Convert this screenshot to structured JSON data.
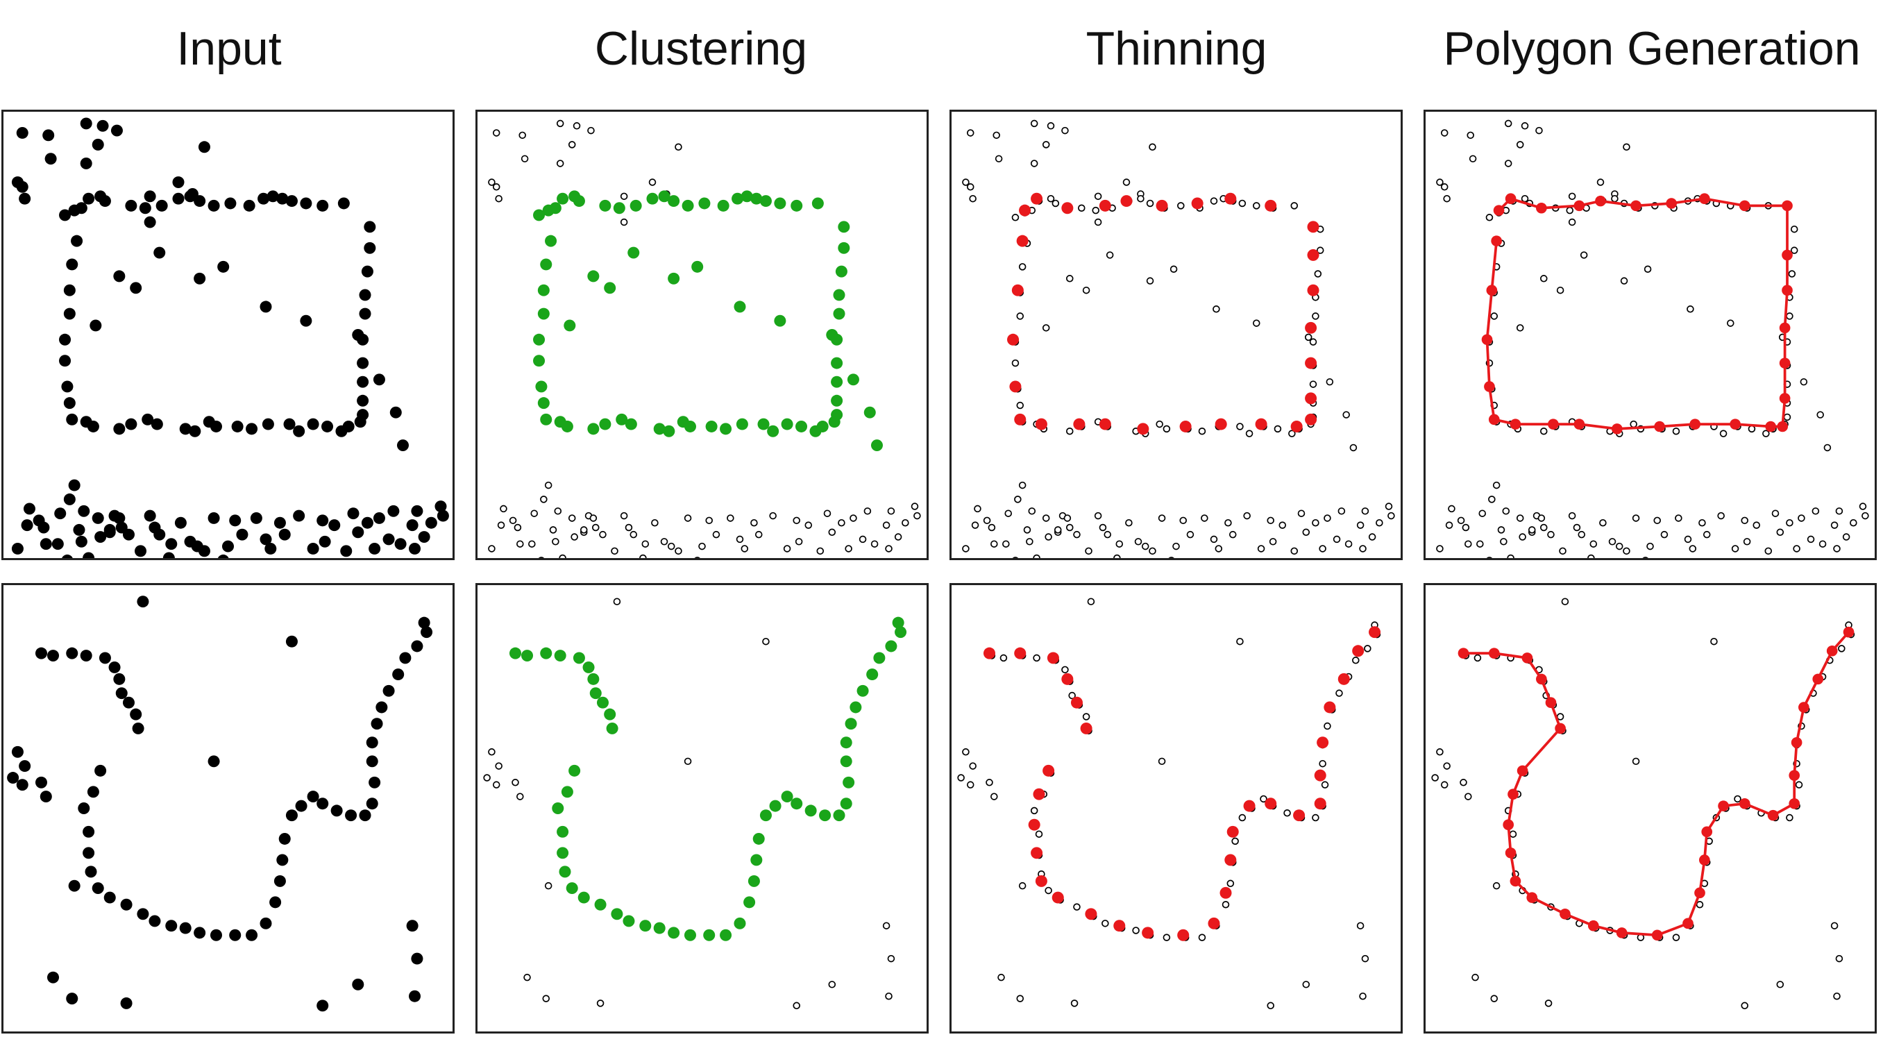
{
  "columns": [
    {
      "title": "Input"
    },
    {
      "title": "Clustering"
    },
    {
      "title": "Thinning"
    },
    {
      "title": "Polygon Generation"
    }
  ],
  "colors": {
    "input": "#000000",
    "cluster": "#1aa51a",
    "thin": "#e8191c",
    "outline": "#000000",
    "border": "#222222"
  },
  "rows": [
    {
      "name": "rectangle",
      "noise": [
        [
          16,
          18
        ],
        [
          38,
          20
        ],
        [
          70,
          10
        ],
        [
          80,
          28
        ],
        [
          84,
          12
        ],
        [
          96,
          16
        ],
        [
          124,
          94
        ],
        [
          160,
          70
        ],
        [
          170,
          30
        ],
        [
          124,
          72
        ],
        [
          148,
          60
        ],
        [
          70,
          44
        ],
        [
          18,
          390
        ],
        [
          12,
          372
        ],
        [
          34,
          354
        ],
        [
          36,
          368
        ],
        [
          46,
          368
        ],
        [
          30,
          348
        ],
        [
          54,
          382
        ],
        [
          66,
          366
        ],
        [
          72,
          380
        ],
        [
          82,
          362
        ],
        [
          90,
          358
        ],
        [
          94,
          344
        ],
        [
          98,
          346
        ],
        [
          100,
          354
        ],
        [
          106,
          360
        ],
        [
          116,
          374
        ],
        [
          124,
          344
        ],
        [
          128,
          354
        ],
        [
          132,
          360
        ],
        [
          140,
          380
        ],
        [
          142,
          368
        ],
        [
          150,
          350
        ],
        [
          158,
          366
        ],
        [
          164,
          370
        ],
        [
          170,
          374
        ],
        [
          178,
          346
        ],
        [
          186,
          382
        ],
        [
          190,
          370
        ],
        [
          196,
          348
        ],
        [
          202,
          360
        ],
        [
          214,
          346
        ],
        [
          222,
          364
        ],
        [
          226,
          372
        ],
        [
          234,
          350
        ],
        [
          238,
          360
        ],
        [
          250,
          344
        ],
        [
          262,
          372
        ],
        [
          270,
          348
        ],
        [
          272,
          366
        ],
        [
          280,
          352
        ],
        [
          290,
          374
        ],
        [
          296,
          342
        ],
        [
          300,
          358
        ],
        [
          308,
          350
        ],
        [
          314,
          372
        ],
        [
          318,
          346
        ],
        [
          326,
          364
        ],
        [
          330,
          340
        ],
        [
          336,
          368
        ],
        [
          346,
          352
        ],
        [
          348,
          372
        ],
        [
          350,
          340
        ],
        [
          356,
          362
        ],
        [
          362,
          350
        ],
        [
          370,
          336
        ],
        [
          372,
          344
        ],
        [
          12,
          60
        ],
        [
          16,
          64
        ],
        [
          18,
          74
        ],
        [
          40,
          40
        ],
        [
          56,
          330
        ],
        [
          60,
          318
        ],
        [
          22,
          338
        ],
        [
          20,
          352
        ],
        [
          48,
          342
        ],
        [
          64,
          356
        ],
        [
          68,
          340
        ],
        [
          80,
          346
        ],
        [
          90,
          356
        ]
      ],
      "cluster": [
        [
          78,
          182
        ],
        [
          112,
          150
        ],
        [
          98,
          140
        ],
        [
          132,
          120
        ],
        [
          166,
          142
        ],
        [
          186,
          132
        ],
        [
          222,
          166
        ],
        [
          256,
          178
        ],
        [
          300,
          190
        ],
        [
          318,
          228
        ],
        [
          332,
          256
        ],
        [
          338,
          284
        ],
        [
          52,
          88
        ],
        [
          60,
          84
        ],
        [
          66,
          82
        ],
        [
          72,
          74
        ],
        [
          82,
          72
        ],
        [
          86,
          76
        ],
        [
          108,
          80
        ],
        [
          120,
          82
        ],
        [
          134,
          80
        ],
        [
          148,
          74
        ],
        [
          158,
          72
        ],
        [
          166,
          76
        ],
        [
          178,
          80
        ],
        [
          192,
          78
        ],
        [
          208,
          80
        ],
        [
          220,
          74
        ],
        [
          228,
          72
        ],
        [
          236,
          74
        ],
        [
          244,
          76
        ],
        [
          256,
          78
        ],
        [
          270,
          80
        ],
        [
          288,
          78
        ],
        [
          310,
          98
        ],
        [
          310,
          116
        ],
        [
          308,
          136
        ],
        [
          306,
          156
        ],
        [
          306,
          172
        ],
        [
          304,
          194
        ],
        [
          304,
          214
        ],
        [
          304,
          230
        ],
        [
          304,
          246
        ],
        [
          304,
          258
        ],
        [
          62,
          110
        ],
        [
          58,
          130
        ],
        [
          56,
          152
        ],
        [
          56,
          172
        ],
        [
          52,
          194
        ],
        [
          52,
          212
        ],
        [
          54,
          234
        ],
        [
          56,
          248
        ],
        [
          58,
          262
        ],
        [
          70,
          264
        ],
        [
          76,
          268
        ],
        [
          98,
          270
        ],
        [
          108,
          266
        ],
        [
          122,
          262
        ],
        [
          130,
          266
        ],
        [
          154,
          270
        ],
        [
          162,
          272
        ],
        [
          174,
          264
        ],
        [
          180,
          268
        ],
        [
          198,
          268
        ],
        [
          210,
          270
        ],
        [
          224,
          266
        ],
        [
          242,
          266
        ],
        [
          250,
          272
        ],
        [
          262,
          266
        ],
        [
          274,
          268
        ],
        [
          286,
          272
        ],
        [
          292,
          268
        ],
        [
          302,
          264
        ]
      ],
      "thin": [
        [
          62,
          84
        ],
        [
          72,
          74
        ],
        [
          98,
          82
        ],
        [
          130,
          80
        ],
        [
          148,
          76
        ],
        [
          178,
          80
        ],
        [
          208,
          78
        ],
        [
          236,
          74
        ],
        [
          270,
          80
        ],
        [
          306,
          98
        ],
        [
          306,
          122
        ],
        [
          306,
          152
        ],
        [
          304,
          184
        ],
        [
          304,
          214
        ],
        [
          304,
          244
        ],
        [
          304,
          262
        ],
        [
          60,
          110
        ],
        [
          56,
          152
        ],
        [
          52,
          194
        ],
        [
          54,
          234
        ],
        [
          58,
          262
        ],
        [
          76,
          266
        ],
        [
          108,
          266
        ],
        [
          130,
          266
        ],
        [
          162,
          270
        ],
        [
          198,
          268
        ],
        [
          228,
          266
        ],
        [
          262,
          266
        ],
        [
          292,
          268
        ]
      ],
      "polygon": [
        [
          62,
          84
        ],
        [
          72,
          74
        ],
        [
          98,
          82
        ],
        [
          130,
          80
        ],
        [
          148,
          76
        ],
        [
          178,
          80
        ],
        [
          208,
          78
        ],
        [
          236,
          74
        ],
        [
          270,
          80
        ],
        [
          306,
          80
        ],
        [
          306,
          122
        ],
        [
          306,
          152
        ],
        [
          304,
          184
        ],
        [
          304,
          214
        ],
        [
          304,
          244
        ],
        [
          302,
          268
        ],
        [
          292,
          268
        ],
        [
          262,
          266
        ],
        [
          228,
          266
        ],
        [
          198,
          268
        ],
        [
          162,
          270
        ],
        [
          130,
          266
        ],
        [
          108,
          266
        ],
        [
          76,
          266
        ],
        [
          58,
          262
        ],
        [
          54,
          234
        ],
        [
          52,
          194
        ],
        [
          56,
          152
        ],
        [
          60,
          110
        ]
      ]
    },
    {
      "name": "curve",
      "noise": [
        [
          118,
          14
        ],
        [
          244,
          48
        ],
        [
          178,
          150
        ],
        [
          12,
          142
        ],
        [
          18,
          154
        ],
        [
          8,
          164
        ],
        [
          16,
          170
        ],
        [
          32,
          168
        ],
        [
          36,
          180
        ],
        [
          60,
          256
        ],
        [
          42,
          334
        ],
        [
          58,
          352
        ],
        [
          104,
          356
        ],
        [
          270,
          358
        ],
        [
          346,
          290
        ],
        [
          350,
          318
        ],
        [
          348,
          350
        ],
        [
          300,
          340
        ]
      ],
      "cluster": [
        [
          32,
          58
        ],
        [
          42,
          60
        ],
        [
          58,
          58
        ],
        [
          70,
          60
        ],
        [
          86,
          62
        ],
        [
          94,
          70
        ],
        [
          98,
          80
        ],
        [
          100,
          92
        ],
        [
          106,
          100
        ],
        [
          112,
          110
        ],
        [
          114,
          122
        ],
        [
          82,
          158
        ],
        [
          76,
          176
        ],
        [
          68,
          190
        ],
        [
          72,
          210
        ],
        [
          72,
          228
        ],
        [
          74,
          244
        ],
        [
          80,
          258
        ],
        [
          90,
          266
        ],
        [
          104,
          272
        ],
        [
          118,
          280
        ],
        [
          128,
          286
        ],
        [
          142,
          290
        ],
        [
          154,
          292
        ],
        [
          166,
          296
        ],
        [
          180,
          298
        ],
        [
          196,
          298
        ],
        [
          210,
          298
        ],
        [
          222,
          288
        ],
        [
          230,
          270
        ],
        [
          234,
          252
        ],
        [
          236,
          234
        ],
        [
          238,
          216
        ],
        [
          244,
          196
        ],
        [
          252,
          188
        ],
        [
          262,
          180
        ],
        [
          270,
          186
        ],
        [
          282,
          192
        ],
        [
          294,
          196
        ],
        [
          306,
          196
        ],
        [
          312,
          186
        ],
        [
          314,
          168
        ],
        [
          312,
          150
        ],
        [
          312,
          134
        ],
        [
          316,
          118
        ],
        [
          320,
          104
        ],
        [
          326,
          90
        ],
        [
          334,
          76
        ],
        [
          340,
          62
        ],
        [
          350,
          52
        ],
        [
          358,
          40
        ],
        [
          356,
          32
        ]
      ],
      "thin": [
        [
          32,
          58
        ],
        [
          58,
          58
        ],
        [
          86,
          62
        ],
        [
          98,
          80
        ],
        [
          106,
          100
        ],
        [
          114,
          122
        ],
        [
          82,
          158
        ],
        [
          74,
          178
        ],
        [
          70,
          204
        ],
        [
          72,
          228
        ],
        [
          76,
          252
        ],
        [
          90,
          266
        ],
        [
          118,
          280
        ],
        [
          142,
          290
        ],
        [
          166,
          296
        ],
        [
          196,
          298
        ],
        [
          222,
          288
        ],
        [
          232,
          262
        ],
        [
          236,
          234
        ],
        [
          238,
          210
        ],
        [
          252,
          188
        ],
        [
          270,
          186
        ],
        [
          294,
          196
        ],
        [
          312,
          186
        ],
        [
          312,
          162
        ],
        [
          314,
          134
        ],
        [
          320,
          104
        ],
        [
          332,
          80
        ],
        [
          344,
          56
        ],
        [
          358,
          40
        ]
      ],
      "polygon": [
        [
          32,
          58
        ],
        [
          58,
          58
        ],
        [
          86,
          62
        ],
        [
          98,
          80
        ],
        [
          106,
          100
        ],
        [
          114,
          122
        ],
        [
          82,
          158
        ],
        [
          74,
          178
        ],
        [
          70,
          204
        ],
        [
          72,
          228
        ],
        [
          76,
          252
        ],
        [
          90,
          266
        ],
        [
          118,
          280
        ],
        [
          142,
          290
        ],
        [
          166,
          296
        ],
        [
          196,
          298
        ],
        [
          222,
          288
        ],
        [
          232,
          262
        ],
        [
          236,
          234
        ],
        [
          238,
          210
        ],
        [
          252,
          188
        ],
        [
          270,
          186
        ],
        [
          294,
          196
        ],
        [
          312,
          186
        ],
        [
          312,
          162
        ],
        [
          314,
          134
        ],
        [
          320,
          104
        ],
        [
          332,
          80
        ],
        [
          344,
          56
        ],
        [
          358,
          40
        ]
      ]
    }
  ]
}
